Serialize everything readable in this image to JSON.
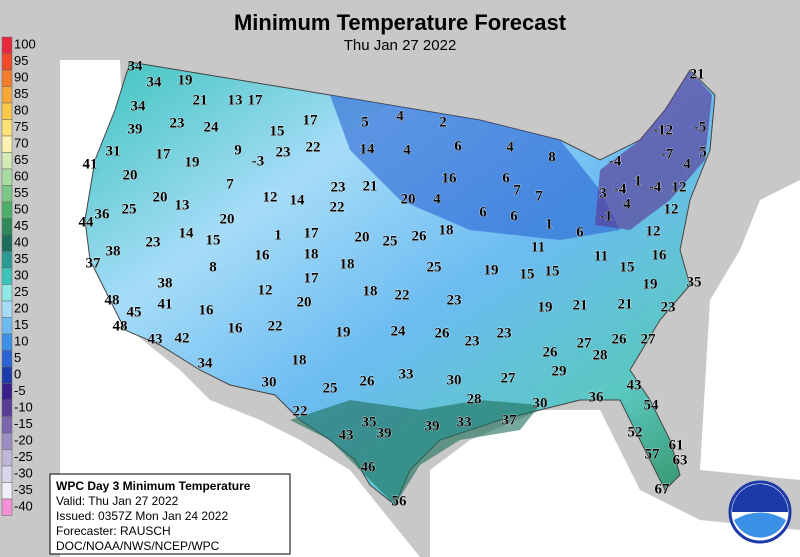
{
  "header": {
    "title": "Minimum Temperature Forecast",
    "subtitle": "Thu Jan 27 2022"
  },
  "legend": {
    "values": [
      100,
      95,
      90,
      85,
      80,
      75,
      70,
      65,
      60,
      55,
      50,
      45,
      40,
      35,
      30,
      25,
      20,
      15,
      10,
      5,
      0,
      -5,
      -10,
      -15,
      -20,
      -25,
      -30,
      -35,
      -40
    ],
    "colors": [
      "#e8283c",
      "#f04a2a",
      "#f27c2c",
      "#f8a838",
      "#fbc84a",
      "#fde27a",
      "#fff2b0",
      "#d2ecb8",
      "#a8dca0",
      "#7cc886",
      "#4eae6a",
      "#2e8a58",
      "#1c6e5a",
      "#2a9a94",
      "#3cc4bc",
      "#8ee8e4",
      "#a6dcf8",
      "#6cbcf2",
      "#3c90e6",
      "#2a64d4",
      "#1c3aa8",
      "#3a1e8a",
      "#5a3c96",
      "#7a66ae",
      "#9c8ec4",
      "#bfb6da",
      "#dcd6ec",
      "#f2eef8",
      "#f490d8"
    ]
  },
  "info": {
    "title": "WPC Day 3 Minimum Temperature",
    "lines": [
      "Valid: Thu Jan 27 2022",
      "Issued: 0357Z Mon Jan 24 2022",
      "Forecaster: RAUSCH",
      "DOC/NOAA/NWS/NCEP/WPC"
    ]
  },
  "stations": [
    34,
    34,
    19,
    21,
    13,
    17,
    34,
    23,
    24,
    39,
    15,
    17,
    31,
    17,
    19,
    9,
    -3,
    23,
    22,
    41,
    20,
    7,
    20,
    13,
    12,
    14,
    23,
    21,
    25,
    36,
    44,
    20,
    22,
    14,
    15,
    1,
    17,
    23,
    38,
    16,
    18,
    37,
    8,
    17,
    38,
    12,
    20,
    48,
    45,
    41,
    16,
    48,
    16,
    22,
    43,
    42,
    34,
    18,
    19,
    30,
    25,
    22,
    26,
    33,
    43,
    39,
    35,
    39,
    33,
    46,
    56,
    28,
    37,
    30,
    27,
    30,
    36,
    43,
    54,
    52,
    61,
    57,
    63,
    67,
    29,
    26,
    27,
    28,
    26,
    27,
    24,
    26,
    23,
    23,
    23,
    19,
    21,
    21,
    23,
    19,
    35,
    15,
    19,
    15,
    15,
    11,
    11,
    16,
    25,
    18,
    18,
    22,
    20,
    25,
    26,
    18,
    20,
    4,
    6,
    6,
    1,
    6,
    -1,
    12,
    12,
    14,
    4,
    16,
    6,
    4,
    6,
    7,
    7,
    8,
    5,
    4,
    2,
    3,
    -4,
    4,
    -4,
    12,
    1,
    -4,
    -7,
    4,
    5,
    -12,
    -5,
    21
  ]
}
